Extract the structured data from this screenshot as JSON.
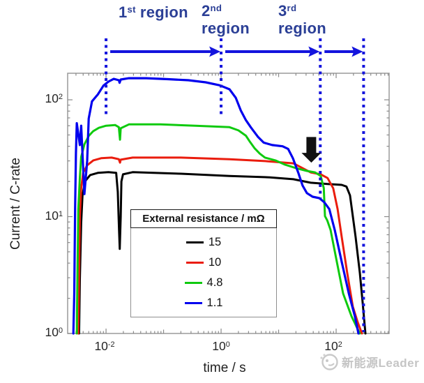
{
  "regions": [
    {
      "num": "1",
      "ord": "st",
      "word": "region"
    },
    {
      "num": "2",
      "ord": "nd",
      "word": "region"
    },
    {
      "num": "3",
      "ord": "rd",
      "word": "region"
    }
  ],
  "chart_data": {
    "type": "line",
    "title": "",
    "xlabel": "time / s",
    "ylabel": "Current / C-rate",
    "x_scale": "log",
    "y_scale": "log",
    "x_range": [
      0.00215,
      834
    ],
    "y_range": [
      1,
      168.7
    ],
    "grid": "off",
    "x_ticks": [
      {
        "v": 0.01,
        "base": "10",
        "exp": "-2"
      },
      {
        "v": 1,
        "base": "10",
        "exp": "0"
      },
      {
        "v": 100,
        "base": "10",
        "exp": "2"
      }
    ],
    "y_ticks": [
      {
        "v": 100,
        "base": "10",
        "exp": "2"
      },
      {
        "v": 10,
        "base": "10",
        "exp": "1"
      },
      {
        "v": 1,
        "base": "10",
        "exp": "0"
      }
    ],
    "legend": {
      "title": "External resistance / mΩ",
      "position": "lower-center-inside",
      "entries": [
        {
          "label": "15",
          "color": "#000000"
        },
        {
          "label": "10",
          "color": "#ea1c0d"
        },
        {
          "label": "4.8",
          "color": "#0fca0f"
        },
        {
          "label": "1.1",
          "color": "#0000ee"
        }
      ]
    },
    "series": [
      {
        "name": "15",
        "color": "#000000",
        "points": [
          [
            0.0034,
            1.0
          ],
          [
            0.0035,
            2.9
          ],
          [
            0.0037,
            8.8
          ],
          [
            0.0039,
            15.2
          ],
          [
            0.0043,
            20
          ],
          [
            0.0053,
            22.7
          ],
          [
            0.0072,
            23.7
          ],
          [
            0.011,
            24
          ],
          [
            0.015,
            23.7
          ],
          [
            0.016,
            16.3
          ],
          [
            0.0168,
            7.7
          ],
          [
            0.0173,
            5.3
          ],
          [
            0.018,
            10
          ],
          [
            0.0185,
            20
          ],
          [
            0.0197,
            23
          ],
          [
            0.029,
            24
          ],
          [
            0.2,
            23.3
          ],
          [
            1.4,
            22.3
          ],
          [
            7,
            21.7
          ],
          [
            18,
            20.9
          ],
          [
            36,
            19.5
          ],
          [
            71,
            19
          ],
          [
            125,
            18.7
          ],
          [
            151,
            18.1
          ],
          [
            174,
            15.2
          ],
          [
            195,
            10.1
          ],
          [
            218,
            6.7
          ],
          [
            258,
            3.3
          ],
          [
            287,
            1.9
          ],
          [
            323,
            1.0
          ]
        ]
      },
      {
        "name": "10",
        "color": "#ea1c0d",
        "points": [
          [
            0.0033,
            1.0
          ],
          [
            0.0034,
            3.3
          ],
          [
            0.0035,
            10
          ],
          [
            0.0037,
            17.5
          ],
          [
            0.004,
            23.7
          ],
          [
            0.0047,
            27.5
          ],
          [
            0.006,
            30.3
          ],
          [
            0.0082,
            31.6
          ],
          [
            0.0125,
            32
          ],
          [
            0.0167,
            31
          ],
          [
            0.0175,
            29
          ],
          [
            0.018,
            30.7
          ],
          [
            0.029,
            32
          ],
          [
            0.2,
            32
          ],
          [
            1.4,
            31
          ],
          [
            5.8,
            29.9
          ],
          [
            18,
            28.6
          ],
          [
            36,
            23.9
          ],
          [
            54,
            23
          ],
          [
            71,
            21.4
          ],
          [
            89,
            17.5
          ],
          [
            106,
            11.6
          ],
          [
            125,
            6.7
          ],
          [
            156,
            3.3
          ],
          [
            195,
            1.7
          ],
          [
            237,
            1.25
          ],
          [
            281,
            1.0
          ]
        ]
      },
      {
        "name": "4.8",
        "color": "#0fca0f",
        "points": [
          [
            0.0031,
            1.0
          ],
          [
            0.0032,
            3.8
          ],
          [
            0.0033,
            11.6
          ],
          [
            0.0035,
            21.5
          ],
          [
            0.0037,
            32.4
          ],
          [
            0.0042,
            41.5
          ],
          [
            0.005,
            49
          ],
          [
            0.006,
            54
          ],
          [
            0.0075,
            57.6
          ],
          [
            0.01,
            60
          ],
          [
            0.0144,
            60.8
          ],
          [
            0.0167,
            58.3
          ],
          [
            0.0175,
            45.6
          ],
          [
            0.018,
            57
          ],
          [
            0.025,
            61.6
          ],
          [
            0.088,
            61.6
          ],
          [
            0.36,
            60
          ],
          [
            1.4,
            58.3
          ],
          [
            2.0,
            54.7
          ],
          [
            2.7,
            49.3
          ],
          [
            3.1,
            44.4
          ],
          [
            3.8,
            38.6
          ],
          [
            4.7,
            34.6
          ],
          [
            5.8,
            32
          ],
          [
            8.8,
            30.3
          ],
          [
            13,
            27.8
          ],
          [
            20,
            26
          ],
          [
            31,
            24.6
          ],
          [
            43,
            23.9
          ],
          [
            54,
            22.3
          ],
          [
            61,
            17.5
          ],
          [
            64,
            10.1
          ],
          [
            70,
            9.3
          ],
          [
            80,
            7.7
          ],
          [
            100,
            4.4
          ],
          [
            132,
            2.2
          ],
          [
            185,
            1.4
          ],
          [
            258,
            1.0
          ]
        ]
      },
      {
        "name": "1.1",
        "color": "#0000ee",
        "points": [
          [
            0.0027,
            1.0
          ],
          [
            0.0028,
            2.2
          ],
          [
            0.0029,
            11.6
          ],
          [
            0.003,
            35
          ],
          [
            0.0031,
            63
          ],
          [
            0.0035,
            41
          ],
          [
            0.0037,
            60
          ],
          [
            0.0042,
            15.6
          ],
          [
            0.0047,
            30
          ],
          [
            0.005,
            69
          ],
          [
            0.0057,
            97
          ],
          [
            0.0072,
            111
          ],
          [
            0.009,
            132
          ],
          [
            0.011,
            143
          ],
          [
            0.0136,
            151
          ],
          [
            0.0167,
            147
          ],
          [
            0.0172,
            140
          ],
          [
            0.018,
            149
          ],
          [
            0.025,
            153
          ],
          [
            0.05,
            153
          ],
          [
            0.12,
            150
          ],
          [
            0.27,
            147
          ],
          [
            0.54,
            141
          ],
          [
            0.95,
            133
          ],
          [
            1.4,
            123
          ],
          [
            1.8,
            104
          ],
          [
            2.2,
            81
          ],
          [
            2.7,
            67
          ],
          [
            3.3,
            58
          ],
          [
            4.4,
            48
          ],
          [
            5.5,
            43
          ],
          [
            7.7,
            41
          ],
          [
            11.7,
            40
          ],
          [
            14.6,
            38
          ],
          [
            17.7,
            31.6
          ],
          [
            22,
            23.7
          ],
          [
            26,
            18.5
          ],
          [
            31,
            15.9
          ],
          [
            39,
            14.8
          ],
          [
            51,
            14.4
          ],
          [
            62,
            13.3
          ],
          [
            76,
            11.6
          ],
          [
            95,
            7.6
          ],
          [
            125,
            4.1
          ],
          [
            166,
            2.2
          ],
          [
            212,
            1.4
          ],
          [
            244,
            1.0
          ]
        ]
      }
    ],
    "annotations": {
      "dotted_lines_t": [
        0.01,
        1,
        53,
        300
      ],
      "region_arrows": [
        {
          "from": 0.01,
          "to": 1
        },
        {
          "from": 1,
          "to": 53
        },
        {
          "from": 53,
          "to": 300
        }
      ],
      "down_arrow": {
        "t": 37,
        "i_tail": 48,
        "i_tip": 29
      },
      "accent_color": "#1414dd"
    }
  },
  "watermark": {
    "text": "新能源Leader"
  }
}
